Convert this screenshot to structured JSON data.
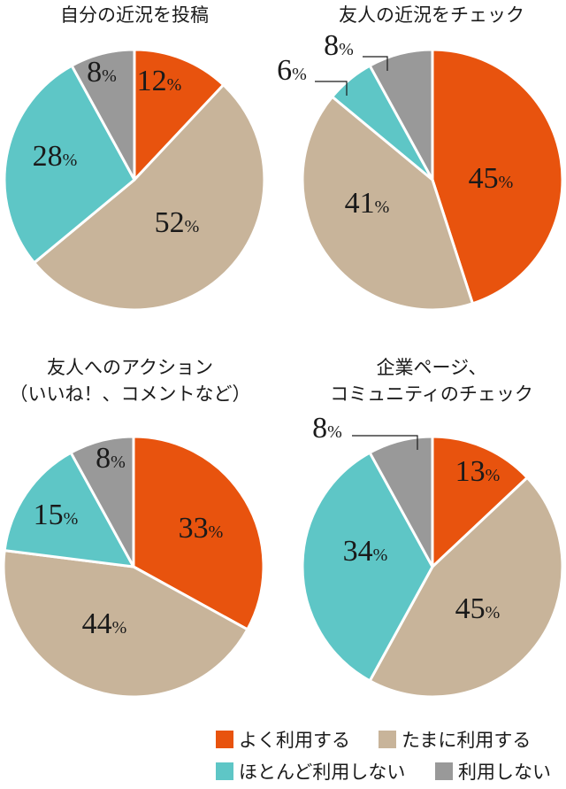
{
  "chart_data": [
    {
      "type": "pie",
      "title": "自分の近況を投稿",
      "categories": [
        "よく利用する",
        "たまに利用する",
        "ほとんど利用しない",
        "利用しない"
      ],
      "values": [
        12,
        52,
        28,
        8
      ],
      "labels": [
        "12",
        "52",
        "28",
        "8"
      ],
      "unit": "%"
    },
    {
      "type": "pie",
      "title": "友人の近況をチェック",
      "categories": [
        "よく利用する",
        "たまに利用する",
        "ほとんど利用しない",
        "利用しない"
      ],
      "values": [
        45,
        41,
        6,
        8
      ],
      "labels": [
        "45",
        "41",
        "6",
        "8"
      ],
      "unit": "%"
    },
    {
      "type": "pie",
      "title": "友人へのアクション",
      "subtitle": "（いいね！、コメントなど）",
      "categories": [
        "よく利用する",
        "たまに利用する",
        "ほとんど利用しない",
        "利用しない"
      ],
      "values": [
        33,
        44,
        15,
        8
      ],
      "labels": [
        "33",
        "44",
        "15",
        "8"
      ],
      "unit": "%"
    },
    {
      "type": "pie",
      "title": "企業ページ、",
      "subtitle": "コミュニティのチェック",
      "categories": [
        "よく利用する",
        "たまに利用する",
        "ほとんど利用しない",
        "利用しない"
      ],
      "values": [
        13,
        45,
        34,
        8
      ],
      "labels": [
        "13",
        "45",
        "34",
        "8"
      ],
      "unit": "%"
    }
  ],
  "legend": {
    "items": [
      "よく利用する",
      "たまに利用する",
      "ほとんど利用しない",
      "利用しない"
    ]
  },
  "colors": {
    "often": "#e8530e",
    "sometimes": "#c8b49a",
    "rarely": "#5ec6c6",
    "never": "#999999",
    "stroke": "#ffffff"
  }
}
